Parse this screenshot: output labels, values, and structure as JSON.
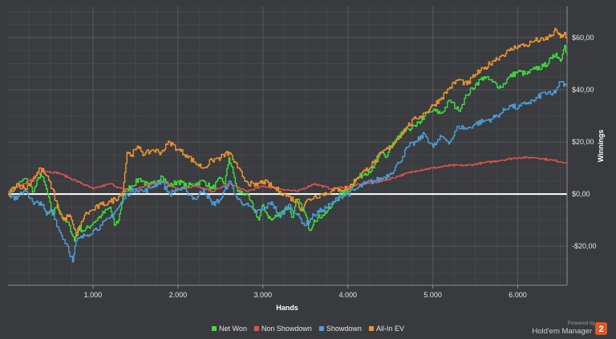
{
  "chart_data": {
    "type": "line",
    "title": "",
    "xlabel": "Hands",
    "ylabel": "Winnings",
    "xlim": [
      0,
      6580
    ],
    "ylim": [
      -35,
      72
    ],
    "x_ticks": [
      1000,
      2000,
      3000,
      4000,
      5000,
      6000
    ],
    "x_tick_labels": [
      "1.000",
      "2.000",
      "3.000",
      "4.000",
      "5.000",
      "6.000"
    ],
    "y_ticks": [
      -20,
      0,
      20,
      40,
      60
    ],
    "y_tick_labels": [
      "-$20,00",
      "$0,00",
      "$20,00",
      "$40,00",
      "$60,00"
    ],
    "grid": true,
    "legend_position": "bottom-center",
    "zero_line_color": "#ffffff",
    "series": [
      {
        "name": "Net Won",
        "color": "#3ddc3d",
        "x": [
          0,
          100,
          200,
          300,
          380,
          450,
          520,
          580,
          650,
          720,
          780,
          820,
          900,
          1000,
          1100,
          1200,
          1250,
          1300,
          1350,
          1400,
          1450,
          1550,
          1650,
          1700,
          1800,
          1900,
          2000,
          2100,
          2200,
          2300,
          2400,
          2500,
          2550,
          2600,
          2650,
          2700,
          2800,
          2900,
          2950,
          3000,
          3050,
          3100,
          3200,
          3300,
          3350,
          3400,
          3500,
          3550,
          3600,
          3700,
          3800,
          3900,
          4000,
          4100,
          4200,
          4300,
          4400,
          4450,
          4500,
          4600,
          4700,
          4800,
          4900,
          5000,
          5100,
          5200,
          5300,
          5400,
          5500,
          5600,
          5700,
          5800,
          5900,
          6000,
          6100,
          6200,
          6300,
          6400,
          6450,
          6500,
          6550,
          6580
        ],
        "y": [
          0,
          3,
          6,
          1,
          8,
          2,
          -8,
          -4,
          -10,
          -12,
          -18,
          -13,
          -14,
          -11,
          -8,
          -5,
          -12,
          -10,
          -1,
          2,
          3,
          6,
          3,
          4,
          7,
          3,
          5,
          3,
          4,
          5,
          2,
          6,
          4,
          14,
          8,
          1,
          0,
          -6,
          -10,
          -4,
          -8,
          -10,
          -7,
          -5,
          -9,
          -2,
          -8,
          -14,
          -10,
          -8,
          -5,
          0,
          1,
          6,
          8,
          10,
          16,
          14,
          18,
          22,
          25,
          26,
          30,
          32,
          31,
          36,
          32,
          38,
          42,
          45,
          43,
          41,
          45,
          47,
          46,
          48,
          49,
          52,
          54,
          51,
          57,
          53
        ]
      },
      {
        "name": "Non Showdown",
        "color": "#e05252",
        "x": [
          0,
          200,
          400,
          600,
          800,
          1000,
          1200,
          1400,
          1600,
          1800,
          2000,
          2200,
          2400,
          2600,
          2800,
          3000,
          3200,
          3400,
          3600,
          3800,
          4000,
          4200,
          4400,
          4600,
          4800,
          5000,
          5200,
          5400,
          5600,
          5800,
          6000,
          6200,
          6400,
          6580
        ],
        "y": [
          1,
          4,
          9,
          8,
          5,
          2,
          4,
          1,
          3,
          5,
          2,
          3,
          1,
          4,
          1,
          3,
          2,
          1,
          4,
          2,
          3,
          4,
          5,
          7,
          9,
          10,
          11,
          11,
          12,
          13,
          14,
          14,
          13,
          12
        ]
      },
      {
        "name": "Showdown",
        "color": "#4a9fdb",
        "x": [
          0,
          100,
          200,
          300,
          380,
          450,
          520,
          600,
          700,
          760,
          800,
          900,
          1000,
          1100,
          1200,
          1300,
          1400,
          1500,
          1600,
          1700,
          1800,
          1900,
          2000,
          2100,
          2200,
          2300,
          2400,
          2500,
          2600,
          2700,
          2800,
          2900,
          3000,
          3100,
          3200,
          3300,
          3400,
          3500,
          3600,
          3700,
          3800,
          3900,
          4000,
          4100,
          4200,
          4300,
          4400,
          4500,
          4600,
          4700,
          4800,
          4900,
          5000,
          5100,
          5200,
          5300,
          5400,
          5500,
          5600,
          5700,
          5800,
          5900,
          6000,
          6100,
          6200,
          6300,
          6400,
          6450,
          6500,
          6580
        ],
        "y": [
          0,
          -2,
          2,
          -4,
          -3,
          -8,
          -6,
          -14,
          -20,
          -26,
          -18,
          -16,
          -14,
          -12,
          -9,
          -5,
          0,
          2,
          1,
          3,
          5,
          0,
          2,
          1,
          -2,
          2,
          -4,
          -2,
          5,
          -2,
          -4,
          -7,
          -6,
          -3,
          -9,
          -4,
          -8,
          -12,
          -8,
          -6,
          -4,
          -1,
          0,
          2,
          4,
          5,
          6,
          8,
          12,
          18,
          20,
          23,
          18,
          22,
          20,
          26,
          25,
          27,
          28,
          29,
          31,
          34,
          33,
          35,
          36,
          39,
          38,
          40,
          43,
          41
        ]
      },
      {
        "name": "All-In EV",
        "color": "#f0952e",
        "x": [
          0,
          100,
          200,
          300,
          380,
          450,
          520,
          580,
          650,
          720,
          800,
          850,
          900,
          1000,
          1100,
          1200,
          1300,
          1350,
          1400,
          1450,
          1500,
          1550,
          1600,
          1700,
          1800,
          1900,
          2000,
          2100,
          2200,
          2300,
          2400,
          2500,
          2600,
          2700,
          2800,
          2900,
          3000,
          3100,
          3200,
          3300,
          3400,
          3450,
          3500,
          3600,
          3700,
          3800,
          3900,
          4000,
          4100,
          4200,
          4300,
          4400,
          4500,
          4600,
          4700,
          4800,
          4900,
          5000,
          5100,
          5200,
          5300,
          5400,
          5500,
          5600,
          5700,
          5800,
          5900,
          6000,
          6100,
          6200,
          6300,
          6400,
          6450,
          6500,
          6550,
          6580
        ],
        "y": [
          0,
          4,
          2,
          6,
          10,
          7,
          2,
          -5,
          -10,
          -8,
          -16,
          -12,
          -8,
          -6,
          -4,
          -3,
          -1,
          1,
          16,
          15,
          17,
          18,
          15,
          17,
          16,
          20,
          17,
          15,
          12,
          10,
          13,
          14,
          16,
          10,
          5,
          3,
          5,
          3,
          1,
          -1,
          -3,
          -6,
          -3,
          -1,
          0,
          1,
          2,
          2,
          6,
          9,
          12,
          16,
          18,
          22,
          26,
          29,
          31,
          34,
          37,
          41,
          44,
          42,
          46,
          48,
          51,
          53,
          55,
          57,
          57,
          59,
          59,
          61,
          63,
          60,
          62,
          58
        ]
      }
    ]
  },
  "brand": {
    "powered_by": "Powered by",
    "name": "Hold'em Manager",
    "badge": "2",
    "accent_color": "#e25822"
  }
}
